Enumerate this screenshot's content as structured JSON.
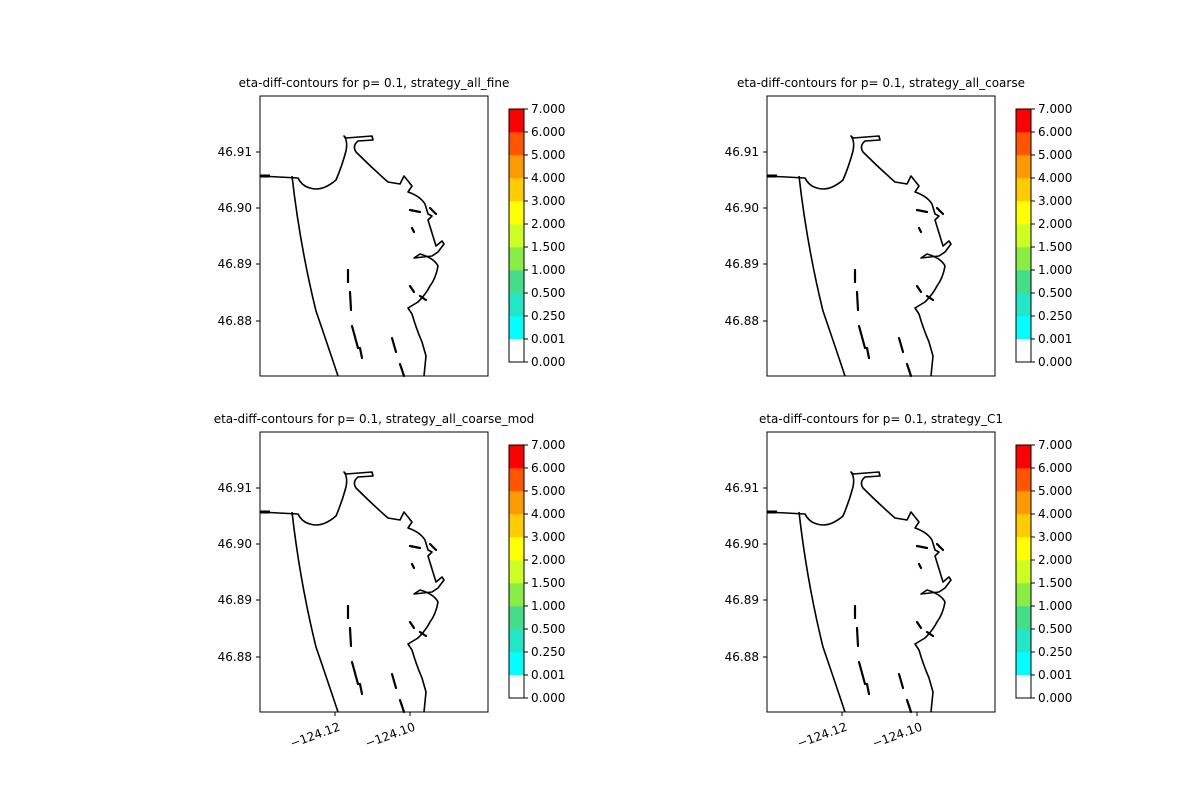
{
  "chart_data": [
    {
      "type": "contour",
      "title": "eta-diff-contours for p= 0.1, strategy_all_fine",
      "y_ticks": [
        "46.91",
        "46.90",
        "46.89",
        "46.88"
      ],
      "x_ticks": [],
      "colorbar": {
        "levels": [
          "0.000",
          "0.001",
          "0.250",
          "0.500",
          "1.000",
          "1.500",
          "2.000",
          "3.000",
          "4.000",
          "5.000",
          "6.000",
          "7.000"
        ],
        "colors": [
          "#ffffff",
          "#00ffff",
          "#22e6c8",
          "#44dd88",
          "#88ee44",
          "#ccff22",
          "#ffff00",
          "#ffcc00",
          "#ff9900",
          "#ff5500",
          "#ff0000"
        ]
      },
      "filled_contours": []
    },
    {
      "type": "contour",
      "title": "eta-diff-contours for p= 0.1, strategy_all_coarse",
      "y_ticks": [
        "46.91",
        "46.90",
        "46.89",
        "46.88"
      ],
      "x_ticks": [],
      "colorbar": {
        "levels": [
          "0.000",
          "0.001",
          "0.250",
          "0.500",
          "1.000",
          "1.500",
          "2.000",
          "3.000",
          "4.000",
          "5.000",
          "6.000",
          "7.000"
        ],
        "colors": [
          "#ffffff",
          "#00ffff",
          "#22e6c8",
          "#44dd88",
          "#88ee44",
          "#ccff22",
          "#ffff00",
          "#ffcc00",
          "#ff9900",
          "#ff5500",
          "#ff0000"
        ]
      },
      "filled_contours": []
    },
    {
      "type": "contour",
      "title": "eta-diff-contours for p= 0.1, strategy_all_coarse_mod",
      "y_ticks": [
        "46.91",
        "46.90",
        "46.89",
        "46.88"
      ],
      "x_ticks": [
        "−124.12",
        "−124.10"
      ],
      "colorbar": {
        "levels": [
          "0.000",
          "0.001",
          "0.250",
          "0.500",
          "1.000",
          "1.500",
          "2.000",
          "3.000",
          "4.000",
          "5.000",
          "6.000",
          "7.000"
        ],
        "colors": [
          "#ffffff",
          "#00ffff",
          "#22e6c8",
          "#44dd88",
          "#88ee44",
          "#ccff22",
          "#ffff00",
          "#ffcc00",
          "#ff9900",
          "#ff5500",
          "#ff0000"
        ]
      },
      "filled_contours": []
    },
    {
      "type": "contour",
      "title": "eta-diff-contours for p= 0.1, strategy_C1",
      "y_ticks": [
        "46.91",
        "46.90",
        "46.89",
        "46.88"
      ],
      "x_ticks": [
        "−124.12",
        "−124.10"
      ],
      "colorbar": {
        "levels": [
          "0.000",
          "0.001",
          "0.250",
          "0.500",
          "1.000",
          "1.500",
          "2.000",
          "3.000",
          "4.000",
          "5.000",
          "6.000",
          "7.000"
        ],
        "colors": [
          "#ffffff",
          "#00ffff",
          "#22e6c8",
          "#44dd88",
          "#88ee44",
          "#ccff22",
          "#ffff00",
          "#ffcc00",
          "#ff9900",
          "#ff5500",
          "#ff0000"
        ]
      },
      "filled_contours": []
    }
  ]
}
